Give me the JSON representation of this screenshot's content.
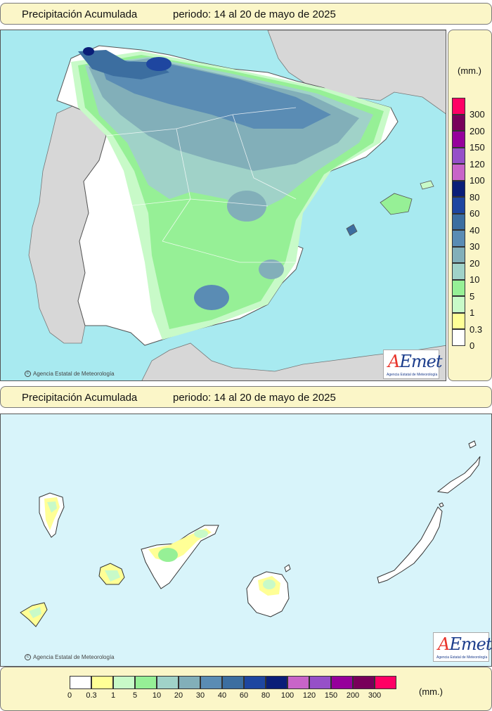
{
  "title": "Precipitación Acumulada",
  "period": "periodo: 14 al 20 de mayo de 2025",
  "credit": "Agencia Estatal de Meteorología",
  "logo": {
    "text_a": "A",
    "text_rest": "Emet",
    "subtitle": "Agencia Estatal de Meteorología"
  },
  "unit": "(mm.)",
  "legend": {
    "classes": [
      {
        "label": "0",
        "color": "#ffffff"
      },
      {
        "label": "0.3",
        "color": "#ffff96"
      },
      {
        "label": "1",
        "color": "#c8fac8"
      },
      {
        "label": "5",
        "color": "#96f096"
      },
      {
        "label": "10",
        "color": "#a0d2c8"
      },
      {
        "label": "20",
        "color": "#82afb9"
      },
      {
        "label": "30",
        "color": "#5a8cb4"
      },
      {
        "label": "40",
        "color": "#3c6ea0"
      },
      {
        "label": "60",
        "color": "#1e46a0"
      },
      {
        "label": "80",
        "color": "#0a1e78"
      },
      {
        "label": "100",
        "color": "#c864c8"
      },
      {
        "label": "120",
        "color": "#9650c8"
      },
      {
        "label": "150",
        "color": "#96009b"
      },
      {
        "label": "200",
        "color": "#78005a"
      },
      {
        "label": "300",
        "color": "#ff0064"
      }
    ]
  },
  "colors": {
    "sea": "#a8eaf0",
    "sea_canarias": "#d8f4fa",
    "foreign_land": "#d7d7d7",
    "frame_bg": "#fbf6c8"
  }
}
